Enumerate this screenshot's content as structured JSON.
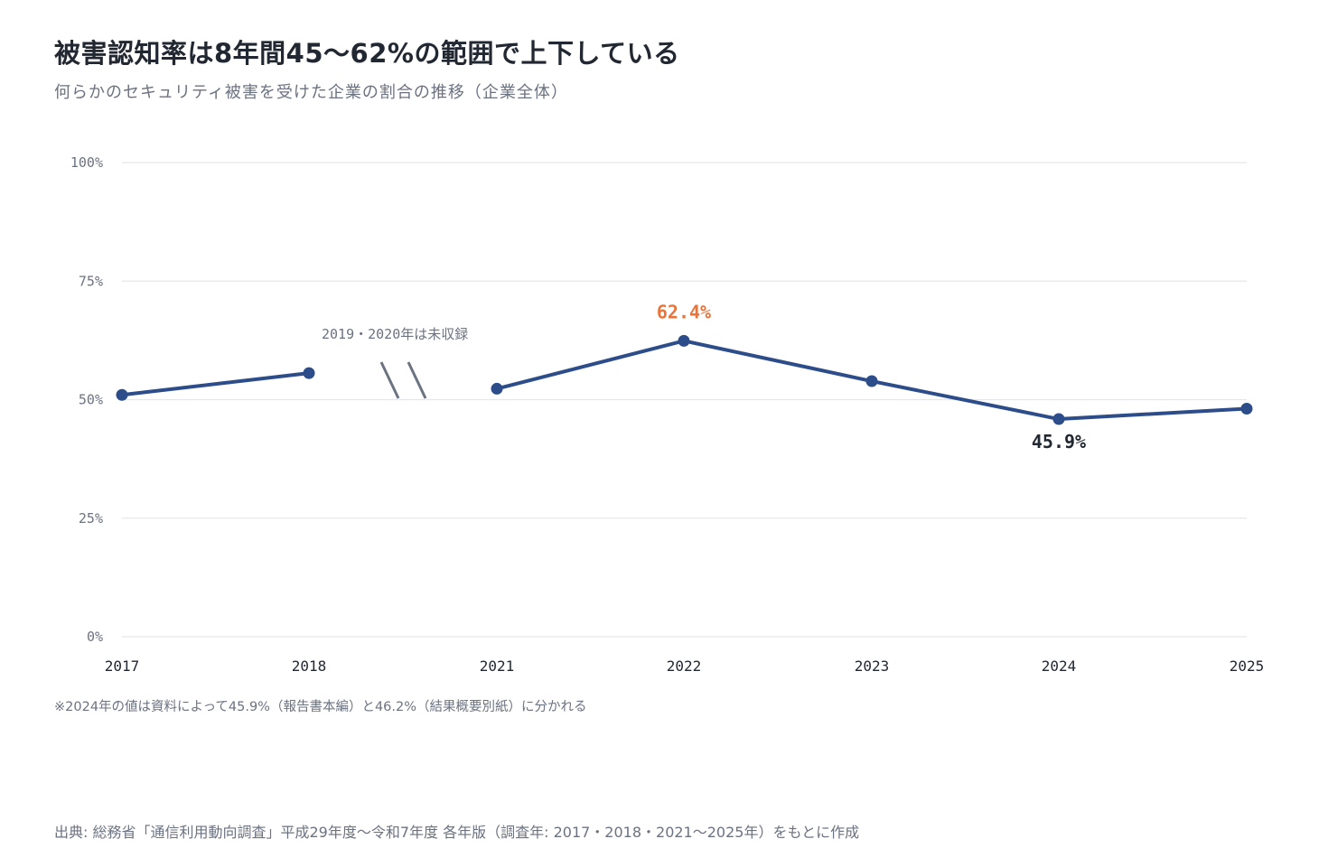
{
  "header": {
    "title": "被害認知率は8年間45〜62%の範囲で上下している",
    "subtitle": "何らかのセキュリティ被害を受けた企業の割合の推移（企業全体）"
  },
  "footer": {
    "note": "※2024年の値は資料によって45.9%（報告書本編）と46.2%（結果概要別紙）に分かれる",
    "source": "出典: 総務省「通信利用動向調査」平成29年度〜令和7年度 各年版（調査年: 2017・2018・2021〜2025年）をもとに作成"
  },
  "chart_data": {
    "type": "line",
    "x": [
      "2017",
      "2018",
      "2021",
      "2022",
      "2023",
      "2024",
      "2025"
    ],
    "series": [
      {
        "values": [
          51.0,
          55.6,
          52.3,
          62.4,
          53.9,
          45.9,
          48.1
        ]
      }
    ],
    "ylim": [
      0,
      100
    ],
    "yticks": [
      {
        "value": 0,
        "label": "0%"
      },
      {
        "value": 25,
        "label": "25%"
      },
      {
        "value": 50,
        "label": "50%"
      },
      {
        "value": 75,
        "label": "75%"
      },
      {
        "value": 100,
        "label": "100%"
      }
    ],
    "grid": true,
    "gap_annotation": "2019・2020年は未収録",
    "point_labels": [
      {
        "x": "2022",
        "label": "62.4%",
        "color": "#e8743b"
      },
      {
        "x": "2024",
        "label": "45.9%",
        "color": "#222831"
      }
    ],
    "colors": {
      "line": "#2c4d8a",
      "grid": "#e5e7eb",
      "gap_marks": "#6b7280",
      "highlight": "#e8743b"
    }
  }
}
